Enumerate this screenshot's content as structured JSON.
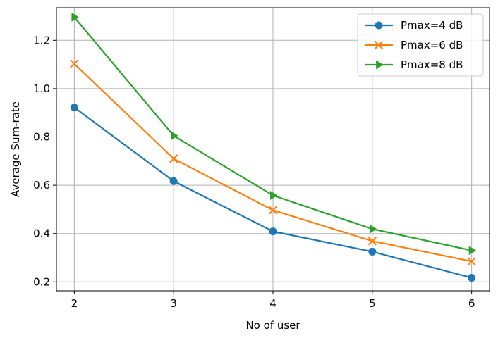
{
  "chart_data": {
    "type": "line",
    "title": "",
    "xlabel": "No of user",
    "ylabel": "Average Sum-rate",
    "x": [
      2,
      3,
      4,
      5,
      6
    ],
    "xlim": [
      1.82,
      6.18
    ],
    "ylim": [
      0.163,
      1.335
    ],
    "xticks": [
      "2",
      "3",
      "4",
      "5",
      "6"
    ],
    "yticks": [
      "0.2",
      "0.4",
      "0.6",
      "0.8",
      "1.0",
      "1.2"
    ],
    "grid": true,
    "legend_position": "top-right",
    "series": [
      {
        "name": "Pmax=4 dB",
        "color": "#1f77b4",
        "marker": "circle",
        "values": [
          0.922,
          0.617,
          0.409,
          0.325,
          0.217
        ]
      },
      {
        "name": "Pmax=6 dB",
        "color": "#ff7f0e",
        "marker": "x",
        "values": [
          1.103,
          0.71,
          0.497,
          0.369,
          0.285
        ]
      },
      {
        "name": "Pmax=8 dB",
        "color": "#2ca02c",
        "marker": "triangle-right",
        "values": [
          1.296,
          0.805,
          0.558,
          0.419,
          0.33
        ]
      }
    ]
  }
}
